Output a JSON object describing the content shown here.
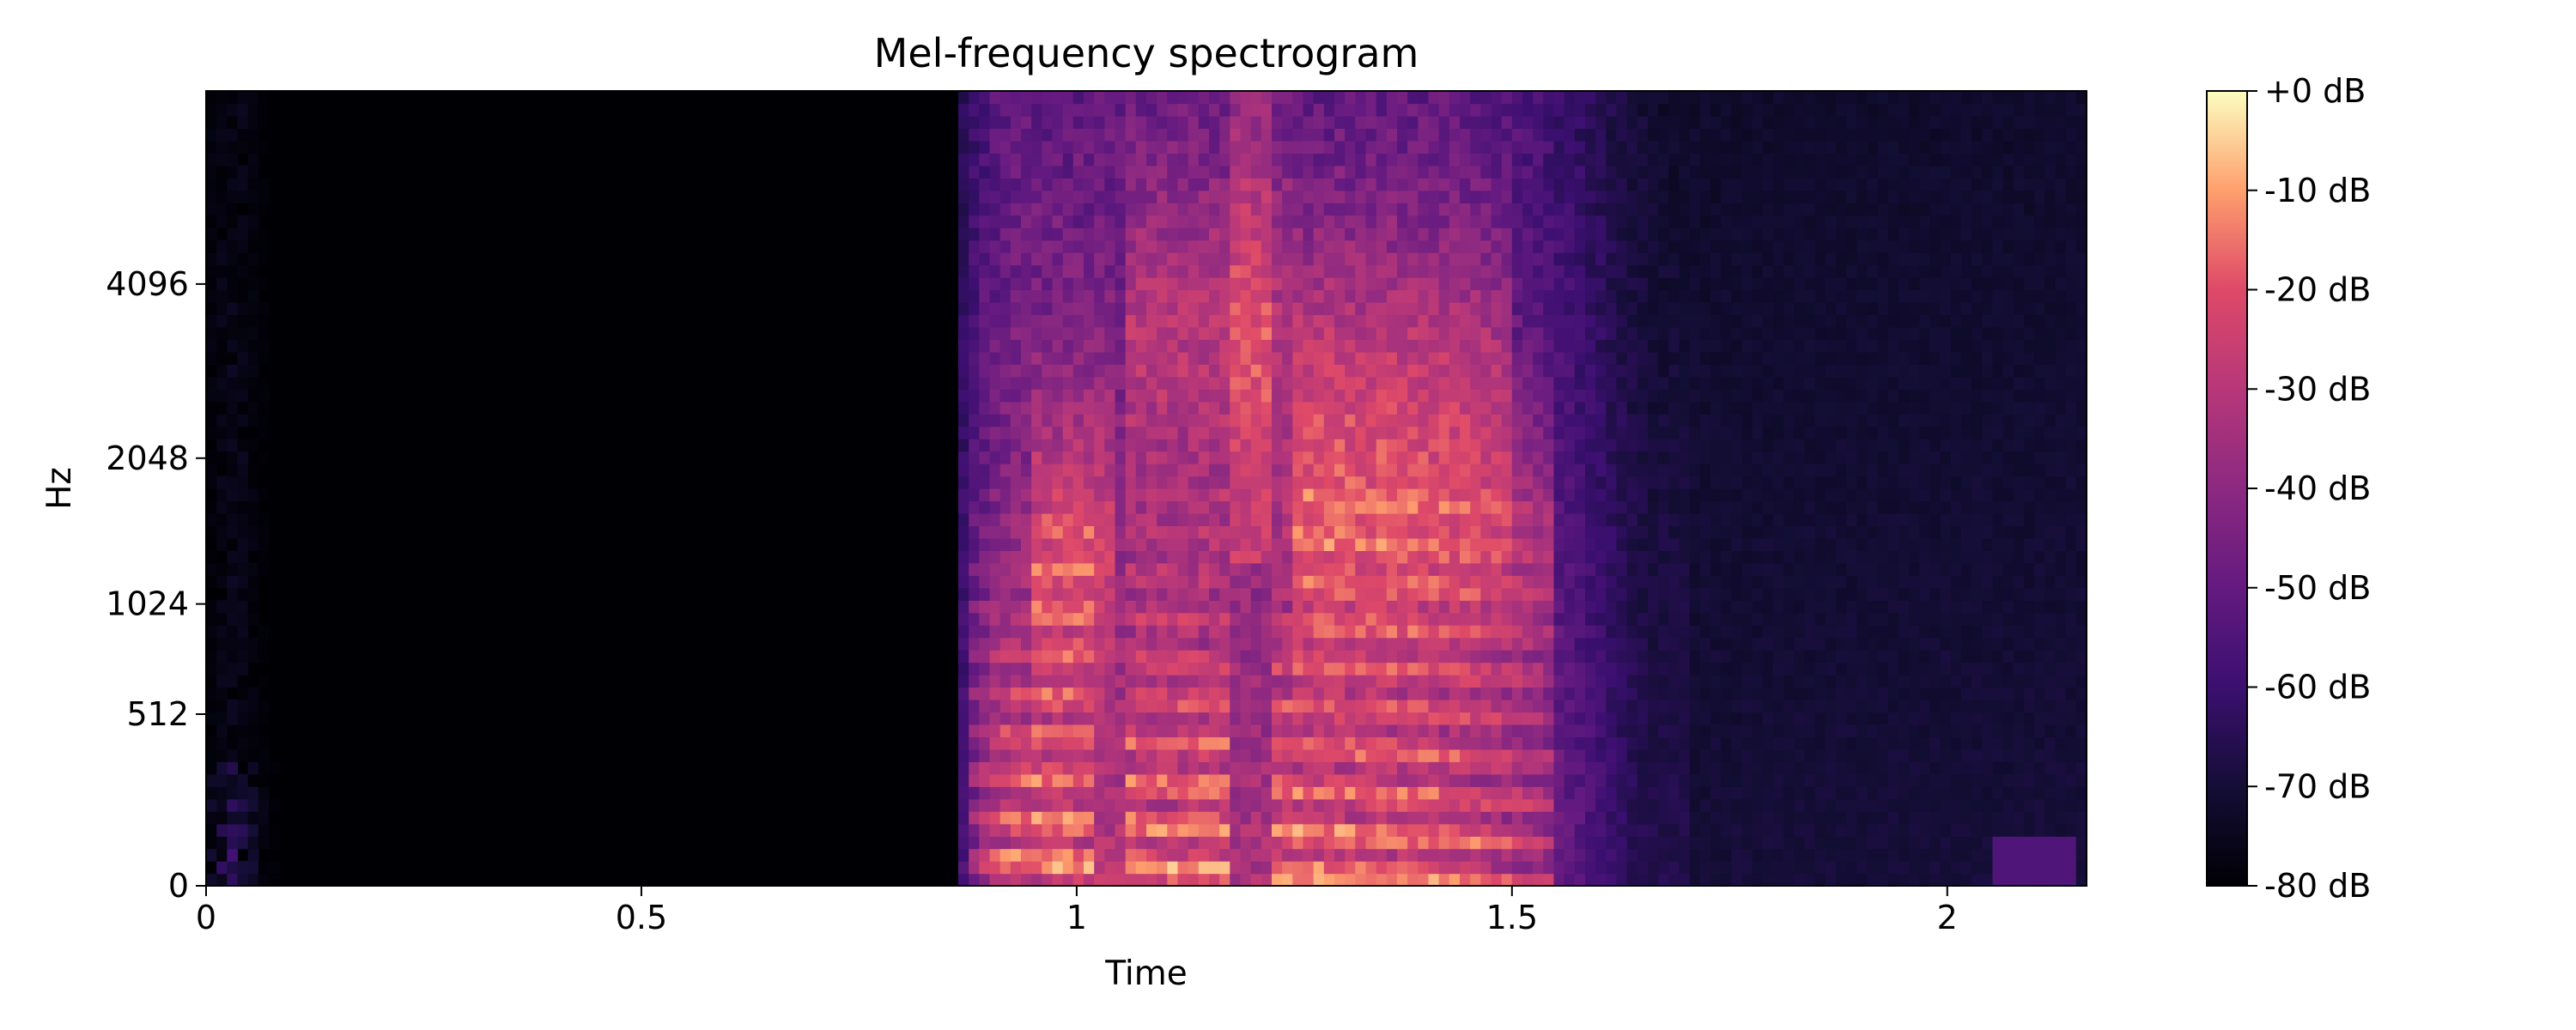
{
  "chart_data": {
    "type": "heatmap",
    "title": "Mel-frequency spectrogram",
    "xlabel": "Time",
    "ylabel": "Hz",
    "xlim": [
      0,
      2.16
    ],
    "x_ticks": [
      {
        "value": 0,
        "label": "0"
      },
      {
        "value": 0.5,
        "label": "0.5"
      },
      {
        "value": 1,
        "label": "1"
      },
      {
        "value": 1.5,
        "label": "1.5"
      },
      {
        "value": 2,
        "label": "2"
      }
    ],
    "y_scale": "mel",
    "ylim": [
      0,
      8192
    ],
    "y_ticks": [
      {
        "value": 0,
        "label": "0"
      },
      {
        "value": 512,
        "label": "512"
      },
      {
        "value": 1024,
        "label": "1024"
      },
      {
        "value": 2048,
        "label": "2048"
      },
      {
        "value": 4096,
        "label": "4096"
      }
    ],
    "colormap": "magma",
    "colorbar": {
      "range": [
        -80,
        0
      ],
      "unit": "dB",
      "ticks": [
        {
          "value": 0,
          "label": "+0 dB"
        },
        {
          "value": -10,
          "label": "-10 dB"
        },
        {
          "value": -20,
          "label": "-20 dB"
        },
        {
          "value": -30,
          "label": "-30 dB"
        },
        {
          "value": -40,
          "label": "-40 dB"
        },
        {
          "value": -50,
          "label": "-50 dB"
        },
        {
          "value": -60,
          "label": "-60 dB"
        },
        {
          "value": -70,
          "label": "-70 dB"
        },
        {
          "value": -80,
          "label": "-80 dB"
        }
      ]
    },
    "grid": false,
    "time_step": 0.012,
    "mel_bins": 64,
    "values_dB_note_free": true,
    "values": []
  }
}
